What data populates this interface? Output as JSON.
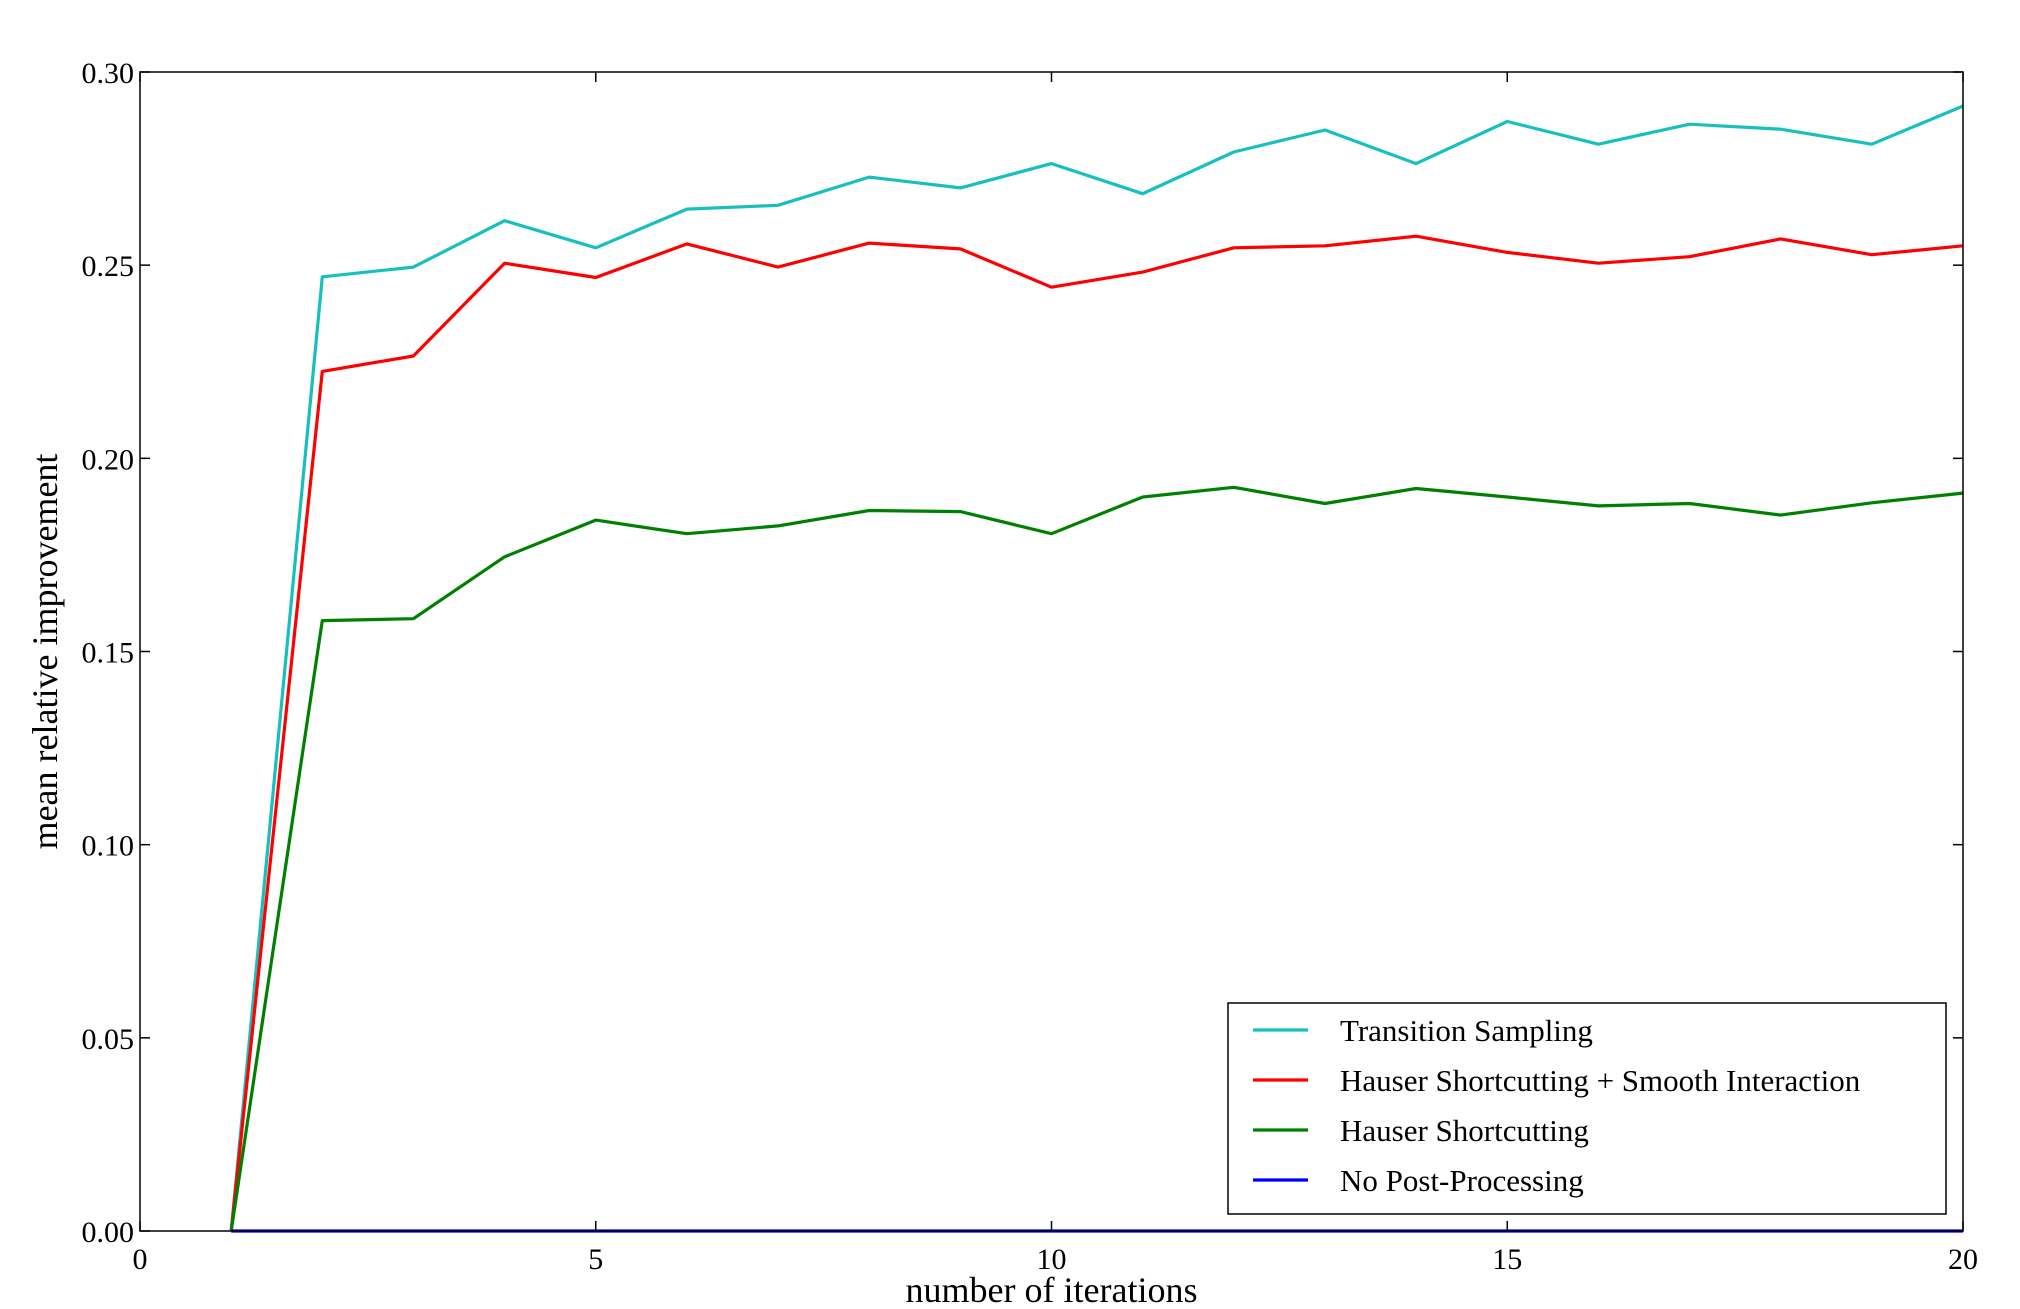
{
  "chart_data": {
    "type": "line",
    "xlabel": "number of iterations",
    "ylabel": "mean relative improvement",
    "xlim": [
      0,
      20
    ],
    "ylim": [
      0.0,
      0.3
    ],
    "x_ticks": [
      "0",
      "5",
      "10",
      "15",
      "20"
    ],
    "y_ticks": [
      "0.00",
      "0.05",
      "0.10",
      "0.15",
      "0.20",
      "0.25",
      "0.30"
    ],
    "grid": false,
    "legend_position": "lower-right",
    "x": [
      1,
      2,
      3,
      4,
      5,
      6,
      7,
      8,
      9,
      10,
      11,
      12,
      13,
      14,
      15,
      16,
      17,
      18,
      19,
      20
    ],
    "series": [
      {
        "name": "Transition Sampling",
        "color": "#17bfbf",
        "values": [
          0.0,
          0.247,
          0.2495,
          0.2615,
          0.2545,
          0.2645,
          0.2655,
          0.2728,
          0.27,
          0.2763,
          0.2685,
          0.2793,
          0.285,
          0.2763,
          0.2872,
          0.2813,
          0.2865,
          0.2852,
          0.2813,
          0.2912
        ]
      },
      {
        "name": "Hauser Shortcutting + Smooth Interaction",
        "color": "#ff0000",
        "values": [
          0.0,
          0.2225,
          0.2265,
          0.2505,
          0.2468,
          0.2555,
          0.2495,
          0.2557,
          0.2542,
          0.2443,
          0.2482,
          0.2545,
          0.255,
          0.2575,
          0.2533,
          0.2505,
          0.2522,
          0.2568,
          0.2527,
          0.255
        ]
      },
      {
        "name": "Hauser Shortcutting",
        "color": "#008000",
        "values": [
          0.0,
          0.158,
          0.1585,
          0.1745,
          0.184,
          0.1805,
          0.1825,
          0.1865,
          0.1862,
          0.1805,
          0.19,
          0.1925,
          0.1883,
          0.1922,
          0.19,
          0.1877,
          0.1883,
          0.1853,
          0.1885,
          0.191
        ]
      },
      {
        "name": "No Post-Processing",
        "color": "#0000ff",
        "values": [
          0.0,
          0.0,
          0.0,
          0.0,
          0.0,
          0.0,
          0.0,
          0.0,
          0.0,
          0.0,
          0.0,
          0.0,
          0.0,
          0.0,
          0.0,
          0.0,
          0.0,
          0.0,
          0.0,
          0.0
        ]
      }
    ]
  }
}
